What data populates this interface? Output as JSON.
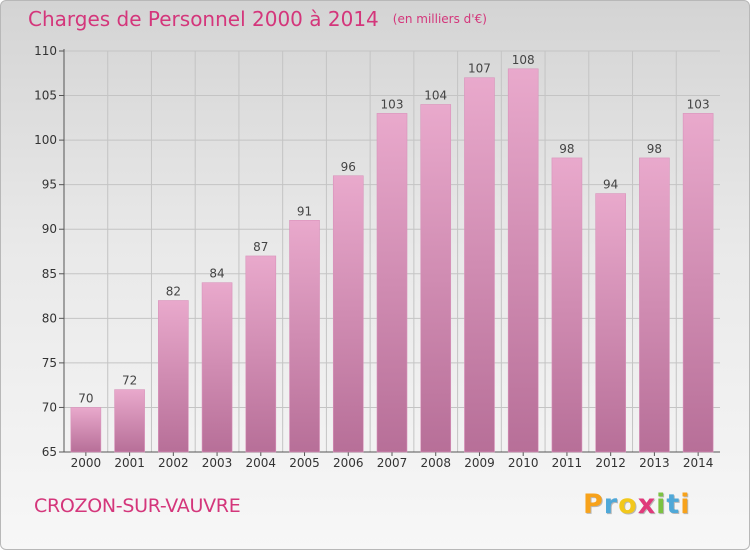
{
  "chart_data": {
    "type": "bar",
    "title": "Charges de Personnel 2000 à 2014",
    "subtitle": "(en milliers d'€)",
    "categories": [
      "2000",
      "2001",
      "2002",
      "2003",
      "2004",
      "2005",
      "2006",
      "2007",
      "2008",
      "2009",
      "2010",
      "2011",
      "2012",
      "2013",
      "2014"
    ],
    "values": [
      70,
      72,
      82,
      84,
      87,
      91,
      96,
      103,
      104,
      107,
      108,
      98,
      94,
      98,
      103
    ],
    "ylim": [
      65,
      110
    ],
    "yticks": [
      65,
      70,
      75,
      80,
      85,
      90,
      95,
      100,
      105,
      110
    ],
    "grid": true,
    "xlabel": "",
    "ylabel": "",
    "colors": {
      "bar_top": "#e9a9cc",
      "bar_bottom": "#b76f98",
      "title": "#d4367b"
    }
  },
  "footer": {
    "commune": "CROZON-SUR-VAUVRE",
    "logo_letters": [
      "P",
      "r",
      "o",
      "x",
      "i",
      "t",
      "i"
    ],
    "logo_colors": [
      "#f7a21b",
      "#4fa8d8",
      "#f2c81c",
      "#e0397b",
      "#7cc242",
      "#4fa8d8",
      "#f7a21b"
    ]
  }
}
